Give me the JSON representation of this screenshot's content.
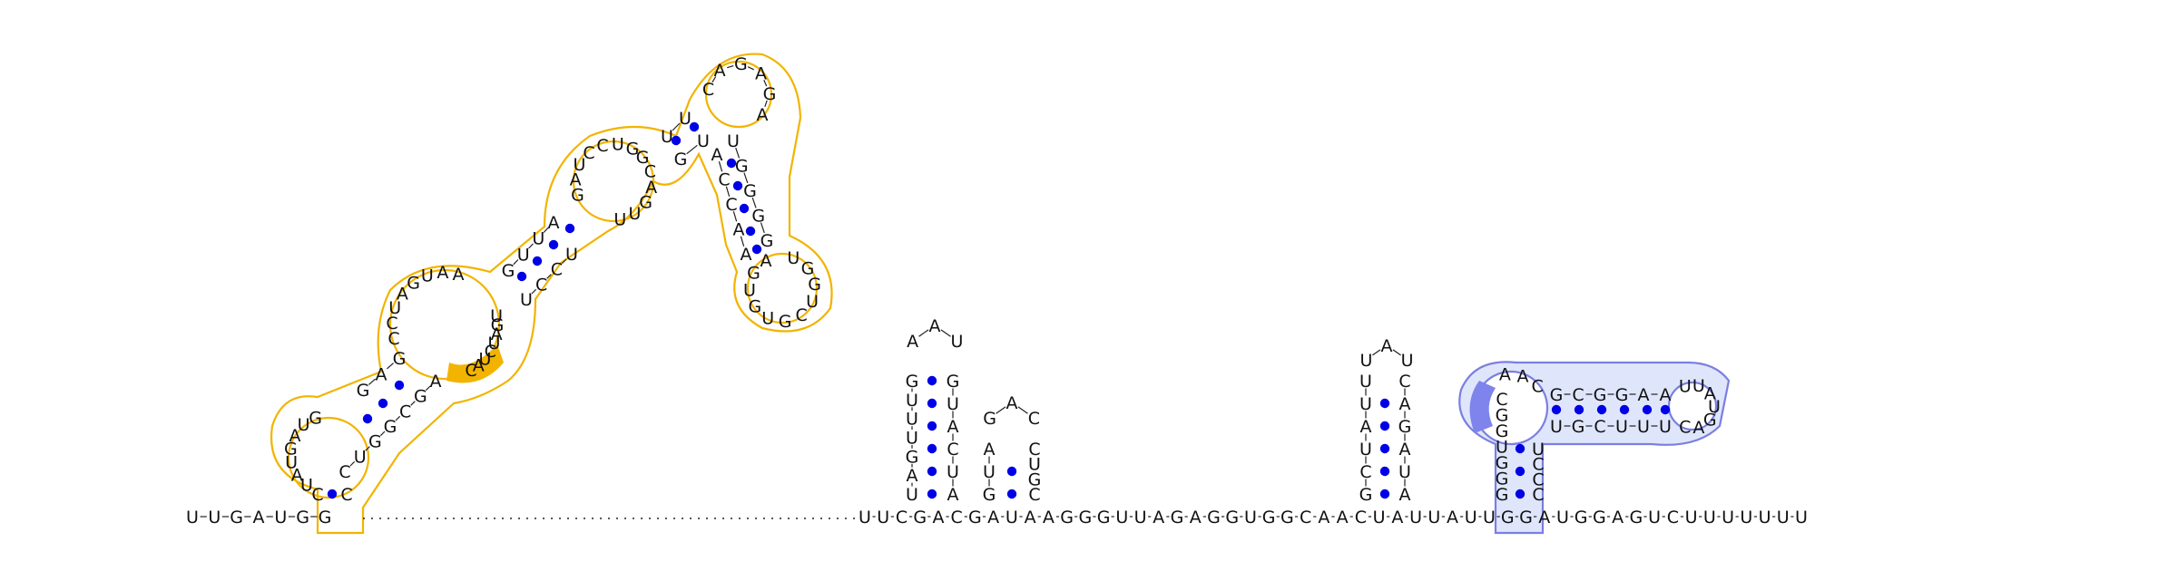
{
  "colors": {
    "domain1_outline": "#f2b400",
    "domain1_highlight": "#f2b400",
    "domain2_outline": "#7a7fe0",
    "domain2_fill": "#dfe6fb",
    "domain2_highlight": "#7e84ec",
    "base_pair": "#0000e6",
    "text": "#111111"
  },
  "strand": {
    "prefix": [
      "U",
      "U",
      "G",
      "A",
      "U",
      "G",
      "G"
    ],
    "after_gap": [
      "U",
      "U",
      "C",
      "G",
      "A",
      "C",
      "G",
      "A",
      "U",
      "A",
      "A",
      "G",
      "G",
      "G",
      "U",
      "U",
      "A",
      "G",
      "A",
      "G",
      "G",
      "U",
      "G",
      "G",
      "C",
      "A",
      "A",
      "C",
      "U",
      "A",
      "U",
      "U",
      "A",
      "U",
      "U",
      "G",
      "G",
      "A",
      "U",
      "G",
      "G",
      "A",
      "G",
      "U",
      "C",
      "U",
      "U",
      "U",
      "U",
      "U",
      "U",
      "U"
    ]
  },
  "yellow_domain": {
    "stem_left": [
      "C"
    ],
    "stem_right": [
      "C"
    ],
    "loop_a": [
      "U",
      "A",
      "U",
      "G",
      "A",
      "U",
      "G"
    ],
    "stem_b_left": [
      "G",
      "A",
      "G"
    ],
    "stem_b_right": [
      "C",
      "U",
      "G",
      "G",
      "C",
      "G",
      "A"
    ],
    "loop_c": [
      "C",
      "C",
      "U",
      "A",
      "G",
      "U",
      "A",
      "A"
    ],
    "loop_c_right": [
      "C",
      "A",
      "U",
      "C",
      "U",
      "A",
      "G",
      "U"
    ],
    "stem_d_left": [
      "G",
      "U",
      "U",
      "A"
    ],
    "stem_d_right": [
      "U",
      "C",
      "C",
      "U"
    ],
    "loop_e_left": [
      "G",
      "A",
      "U",
      "C",
      "C",
      "U",
      "G"
    ],
    "loop_e_right": [
      "U",
      "U",
      "G",
      "A",
      "C",
      "G"
    ],
    "stem_f_left": [
      "U",
      "U"
    ],
    "stem_f_right": [
      "G",
      "U"
    ],
    "loop_g": [
      "C",
      "A",
      "G",
      "A",
      "G",
      "A"
    ],
    "stem_h_left": [
      "U",
      "G",
      "G",
      "G",
      "G"
    ],
    "stem_h_right": [
      "A",
      "C",
      "C",
      "A",
      "A"
    ],
    "loop_i": [
      "U",
      "G",
      "G",
      "U",
      "C",
      "G",
      "U",
      "G",
      "U",
      "G",
      "A"
    ],
    "highlight_bases": [
      "A",
      "U",
      "C",
      "U"
    ]
  },
  "hairpin1": {
    "stem_left": [
      "U",
      "A",
      "G",
      "U",
      "U",
      "U",
      "G"
    ],
    "loop": [
      "A",
      "A",
      "U"
    ],
    "stem_right": [
      "G",
      "U",
      "A",
      "C",
      "U",
      "A"
    ]
  },
  "hairpin2": {
    "stem_left": [
      "G",
      "U",
      "A"
    ],
    "loop": [
      "G",
      "A",
      "C"
    ],
    "stem_right": [
      "C",
      "U",
      "G",
      "C"
    ]
  },
  "hairpin3": {
    "stem_left": [
      "G",
      "C",
      "U",
      "A",
      "U",
      "U"
    ],
    "loop": [
      "U",
      "A",
      "U"
    ],
    "stem_right": [
      "C",
      "A",
      "G",
      "A",
      "U",
      "A"
    ]
  },
  "blue_domain": {
    "stem_left": [
      "G",
      "G",
      "G",
      "U",
      "G",
      "G",
      "C"
    ],
    "stem_right": [
      "U",
      "C",
      "C",
      "C"
    ],
    "loop_top": [
      "A",
      "A",
      "C"
    ],
    "helix_top": [
      "G",
      "C",
      "G",
      "G",
      "A",
      "A"
    ],
    "helix_bottom": [
      "U",
      "G",
      "C",
      "U",
      "U",
      "U"
    ],
    "loop_end": [
      "U",
      "U",
      "A",
      "U",
      "G",
      "A",
      "C"
    ],
    "highlight_bases": [
      "C",
      "G",
      "G",
      "U"
    ]
  }
}
